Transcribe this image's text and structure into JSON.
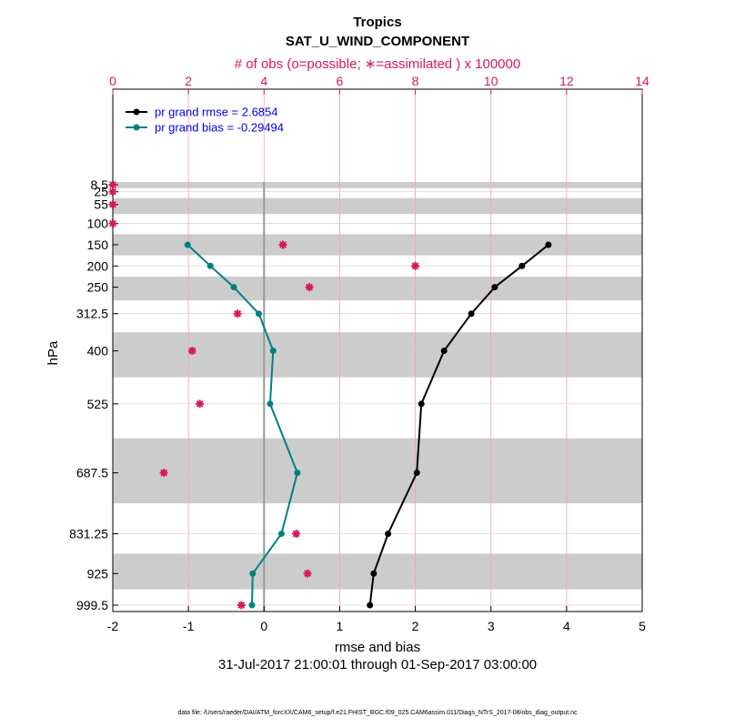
{
  "chart_data": {
    "type": "line",
    "title": "Tropics",
    "subtitle": "SAT_U_WIND_COMPONENT",
    "top_axis_label": "# of obs (o=possible; ∗=assimilated ) x 100000",
    "xlabel": "rmse and bias",
    "ylabel": "hPa",
    "date_range": "31-Jul-2017 21:00:01 through 01-Sep-2017 03:00:00",
    "footer": "data file: /Users/raeder/DAI/ATM_forcXX/CAM6_setup/f.e21.FHIST_BGC.f09_025.CAM6assim.011/Diags_NTrS_2017-08/obs_diag_output.nc",
    "xlim": [
      -2,
      5
    ],
    "x_ticks": [
      "-2",
      "-1",
      "0",
      "1",
      "2",
      "3",
      "4",
      "5"
    ],
    "top_xlim": [
      0,
      14
    ],
    "top_ticks": [
      "0",
      "2",
      "4",
      "6",
      "8",
      "10",
      "12",
      "14"
    ],
    "levels": [
      8.5,
      25,
      55,
      100,
      150,
      200,
      250,
      312.5,
      400,
      525,
      687.5,
      831.25,
      925,
      999.5
    ],
    "level_labels": [
      "8.5",
      "25",
      "55",
      "100",
      "150",
      "200",
      "250",
      "312.5",
      "400",
      "525",
      "687.5",
      "831.25",
      "925",
      "999.5"
    ],
    "legend": {
      "rmse_label": "pr grand rmse = 2.6854",
      "bias_label": "pr grand bias = -0.29494"
    },
    "series": [
      {
        "name": "rmse",
        "color": "#000000",
        "levels": [
          150,
          200,
          250,
          312.5,
          400,
          525,
          687.5,
          831.25,
          925,
          999.5
        ],
        "values": [
          3.76,
          3.41,
          3.05,
          2.74,
          2.38,
          2.08,
          2.02,
          1.64,
          1.45,
          1.4
        ]
      },
      {
        "name": "bias",
        "color": "#008080",
        "levels": [
          150,
          200,
          250,
          312.5,
          400,
          525,
          687.5,
          831.25,
          925,
          999.5
        ],
        "values": [
          -1.01,
          -0.71,
          -0.4,
          -0.07,
          0.12,
          0.08,
          0.44,
          0.23,
          -0.15,
          -0.16
        ]
      }
    ],
    "obs_assimilated": {
      "color": "#d6195a",
      "levels": [
        8.5,
        25,
        55,
        100,
        150,
        200,
        250,
        312.5,
        400,
        525,
        687.5,
        831.25,
        925,
        999.5
      ],
      "values": [
        0.0,
        0.0,
        0.0,
        0.0,
        4.5,
        8.0,
        5.2,
        3.3,
        2.1,
        2.3,
        1.35,
        4.85,
        5.15,
        3.4
      ]
    }
  }
}
